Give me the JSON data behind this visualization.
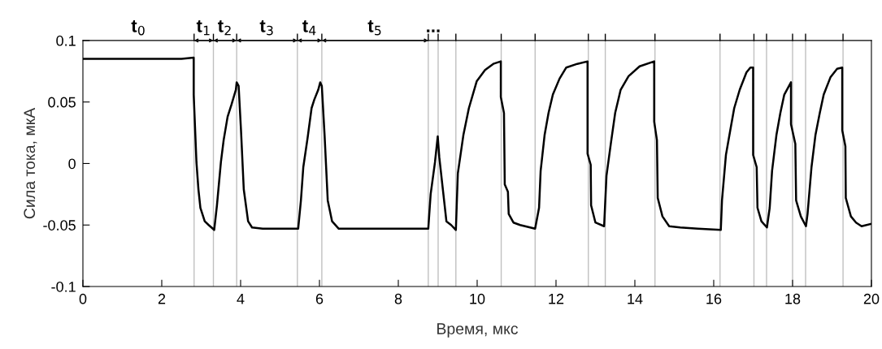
{
  "chart_data": {
    "type": "line",
    "xlabel": "Время, мкс",
    "ylabel": "Сила тока, мкА",
    "xlim": [
      0,
      20
    ],
    "xticks": [
      0,
      2,
      4,
      6,
      8,
      10,
      12,
      14,
      16,
      18,
      20
    ],
    "ylim": [
      -0.1,
      0.1
    ],
    "yticks": [
      {
        "value": -0.1,
        "label": "-0.1"
      },
      {
        "value": -0.05,
        "label": "-0.05"
      },
      0,
      0.05,
      0.1
    ],
    "grid": false,
    "line_style": "solid",
    "marker": "none",
    "series": [
      {
        "color": "#000000",
        "x": [
          0,
          0.5,
          1.0,
          1.5,
          2.0,
          2.5,
          2.81,
          2.81,
          2.88,
          2.93,
          2.98,
          3.09,
          3.19,
          3.33,
          3.4,
          3.5,
          3.57,
          3.67,
          3.77,
          3.88,
          3.9,
          3.95,
          4.01,
          4.08,
          4.19,
          4.29,
          4.56,
          5.0,
          5.46,
          5.53,
          5.59,
          5.7,
          5.8,
          5.87,
          5.97,
          6.02,
          6.06,
          6.13,
          6.21,
          6.32,
          6.49,
          7.0,
          7.5,
          8.0,
          8.5,
          8.76,
          8.82,
          8.93,
          9.0,
          9.04,
          9.13,
          9.22,
          9.34,
          9.46,
          9.51,
          9.65,
          9.79,
          9.99,
          10.2,
          10.41,
          10.6,
          10.6,
          10.68,
          10.7,
          10.78,
          10.8,
          10.92,
          11.09,
          11.47,
          11.57,
          11.61,
          11.71,
          11.81,
          11.92,
          12.09,
          12.26,
          12.54,
          12.8,
          12.8,
          12.88,
          12.89,
          13.0,
          13.22,
          13.28,
          13.39,
          13.5,
          13.64,
          13.84,
          14.12,
          14.49,
          14.49,
          14.56,
          14.58,
          14.7,
          14.87,
          15.15,
          15.6,
          16.18,
          16.21,
          16.31,
          16.42,
          16.52,
          16.66,
          16.83,
          16.93,
          17.0,
          17.0,
          17.09,
          17.11,
          17.21,
          17.35,
          17.42,
          17.48,
          17.59,
          17.69,
          17.79,
          17.96,
          17.96,
          18.07,
          18.09,
          18.21,
          18.34,
          18.38,
          18.48,
          18.58,
          18.69,
          18.79,
          18.96,
          19.13,
          19.26,
          19.26,
          19.34,
          19.35,
          19.48,
          19.61,
          19.75,
          20
        ],
        "values": [
          0.085,
          0.085,
          0.085,
          0.085,
          0.085,
          0.085,
          0.086,
          0.056,
          0.001,
          -0.021,
          -0.036,
          -0.047,
          -0.05,
          -0.054,
          -0.034,
          0.001,
          0.019,
          0.038,
          0.048,
          0.06,
          0.066,
          0.063,
          0.027,
          -0.021,
          -0.047,
          -0.052,
          -0.053,
          -0.053,
          -0.053,
          -0.03,
          -0.003,
          0.021,
          0.045,
          0.052,
          0.06,
          0.066,
          0.063,
          0.023,
          -0.03,
          -0.047,
          -0.053,
          -0.053,
          -0.053,
          -0.053,
          -0.053,
          -0.053,
          -0.025,
          0.001,
          0.022,
          0.005,
          -0.021,
          -0.047,
          -0.05,
          -0.054,
          -0.008,
          0.023,
          0.045,
          0.067,
          0.076,
          0.081,
          0.083,
          0.054,
          0.041,
          -0.017,
          -0.023,
          -0.041,
          -0.048,
          -0.05,
          -0.053,
          -0.036,
          -0.006,
          0.023,
          0.041,
          0.056,
          0.069,
          0.078,
          0.081,
          0.083,
          0.008,
          -0.001,
          -0.034,
          -0.048,
          -0.051,
          -0.01,
          0.016,
          0.041,
          0.06,
          0.071,
          0.079,
          0.083,
          0.034,
          0.019,
          -0.028,
          -0.043,
          -0.051,
          -0.052,
          -0.053,
          -0.054,
          -0.03,
          0.007,
          0.027,
          0.045,
          0.06,
          0.074,
          0.078,
          0.078,
          0.007,
          -0.003,
          -0.036,
          -0.047,
          -0.052,
          -0.036,
          -0.006,
          0.023,
          0.041,
          0.056,
          0.066,
          0.032,
          0.016,
          -0.03,
          -0.043,
          -0.051,
          -0.041,
          -0.003,
          0.023,
          0.041,
          0.056,
          0.07,
          0.077,
          0.078,
          0.027,
          0.014,
          -0.028,
          -0.043,
          -0.048,
          -0.051,
          -0.049
        ]
      }
    ],
    "ref_lines": [
      {
        "axis": "x",
        "value": 2.82,
        "color": "#c0c0c0"
      },
      {
        "axis": "x",
        "value": 3.31,
        "color": "#c0c0c0"
      },
      {
        "axis": "x",
        "value": 3.9,
        "color": "#c0c0c0"
      },
      {
        "axis": "x",
        "value": 5.44,
        "color": "#c0c0c0"
      },
      {
        "axis": "x",
        "value": 6.06,
        "color": "#c0c0c0"
      },
      {
        "axis": "x",
        "value": 8.76,
        "color": "#c0c0c0"
      },
      {
        "axis": "x",
        "value": 9.01,
        "color": "#c0c0c0"
      },
      {
        "axis": "x",
        "value": 9.46,
        "color": "#c0c0c0"
      },
      {
        "axis": "x",
        "value": 10.61,
        "color": "#c0c0c0"
      },
      {
        "axis": "x",
        "value": 11.47,
        "color": "#c0c0c0"
      },
      {
        "axis": "x",
        "value": 12.82,
        "color": "#c0c0c0"
      },
      {
        "axis": "x",
        "value": 13.25,
        "color": "#c0c0c0"
      },
      {
        "axis": "x",
        "value": 14.51,
        "color": "#c0c0c0"
      },
      {
        "axis": "x",
        "value": 16.16,
        "color": "#c0c0c0"
      },
      {
        "axis": "x",
        "value": 17.02,
        "color": "#c0c0c0"
      },
      {
        "axis": "x",
        "value": 17.34,
        "color": "#c0c0c0"
      },
      {
        "axis": "x",
        "value": 18.0,
        "color": "#c0c0c0"
      },
      {
        "axis": "x",
        "value": 18.33,
        "color": "#c0c0c0"
      },
      {
        "axis": "x",
        "value": 19.28,
        "color": "#c0c0c0"
      }
    ],
    "annotations": [
      "t$_{0}$",
      "t$_{1}$",
      "t$_{2}$",
      "t$_{3}$",
      "t$_{4}$",
      "t$_{5}$",
      "..."
    ]
  }
}
